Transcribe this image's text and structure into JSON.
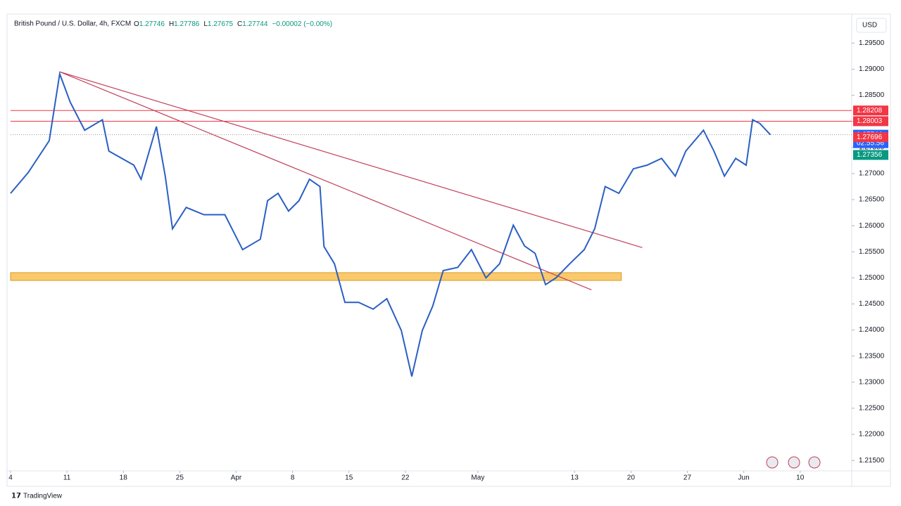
{
  "header": {
    "symbol": "British Pound / U.S. Dollar, 4h, FXCM",
    "ohlc": [
      {
        "label": "O",
        "value": 1.27746
      },
      {
        "label": "H",
        "value": 1.27786
      },
      {
        "label": "L",
        "value": 1.27675
      },
      {
        "label": "C",
        "value": 1.27744
      }
    ],
    "change": "−0.00002 (−0.00%)",
    "currency": "USD"
  },
  "footer": "TradingView",
  "chart_data": {
    "type": "line",
    "xlim": [
      0,
      104.4
    ],
    "xticks": [
      {
        "value": 0,
        "label": "4"
      },
      {
        "value": 7,
        "label": "11"
      },
      {
        "value": 14,
        "label": "18"
      },
      {
        "value": 21,
        "label": "25"
      },
      {
        "value": 28,
        "label": "Apr"
      },
      {
        "value": 35,
        "label": "8"
      },
      {
        "value": 42,
        "label": "15"
      },
      {
        "value": 49,
        "label": "22"
      },
      {
        "value": 58,
        "label": "May"
      },
      {
        "value": 70,
        "label": "13"
      },
      {
        "value": 77,
        "label": "20"
      },
      {
        "value": 84,
        "label": "27"
      },
      {
        "value": 91,
        "label": "Jun"
      },
      {
        "value": 98,
        "label": "10"
      }
    ],
    "ylim": [
      1.213,
      1.2972
    ],
    "yticks": [
      {
        "value": 1.295,
        "label": "1.29500"
      },
      {
        "value": 1.29,
        "label": "1.29000"
      },
      {
        "value": 1.285,
        "label": "1.28500"
      },
      {
        "value": 1.28,
        "label": "1.28000"
      },
      {
        "value": 1.275,
        "label": "1.27500"
      },
      {
        "value": 1.27,
        "label": "1.27000"
      },
      {
        "value": 1.265,
        "label": "1.26500"
      },
      {
        "value": 1.26,
        "label": "1.26000"
      },
      {
        "value": 1.255,
        "label": "1.25500"
      },
      {
        "value": 1.25,
        "label": "1.25000"
      },
      {
        "value": 1.245,
        "label": "1.24500"
      },
      {
        "value": 1.24,
        "label": "1.24000"
      },
      {
        "value": 1.235,
        "label": "1.23500"
      },
      {
        "value": 1.23,
        "label": "1.23000"
      },
      {
        "value": 1.225,
        "label": "1.22500"
      },
      {
        "value": 1.22,
        "label": "1.22000"
      },
      {
        "value": 1.215,
        "label": "1.21500"
      }
    ],
    "series": [
      {
        "name": "GBPUSD",
        "color": "#2a5fc4",
        "x": [
          0,
          2.2,
          4.8,
          6.1,
          7.4,
          9.2,
          11.4,
          12.2,
          15.3,
          16.2,
          18.1,
          19.2,
          20.1,
          21.8,
          24.0,
          26.6,
          28.8,
          31.0,
          31.9,
          33.2,
          34.5,
          35.8,
          37.1,
          38.4,
          38.9,
          40.2,
          41.5,
          43.2,
          45.0,
          46.7,
          48.5,
          49.8,
          51.1,
          52.4,
          53.7,
          55.5,
          57.2,
          59.0,
          60.7,
          62.4,
          63.8,
          65.1,
          66.4,
          67.7,
          69.4,
          71.2,
          72.5,
          73.8,
          75.5,
          77.3,
          79.0,
          80.8,
          82.5,
          83.8,
          86.0,
          87.3,
          88.6,
          90.0,
          91.3,
          92.1,
          93.0,
          94.3
        ],
        "values": [
          1.2662,
          1.2702,
          1.2763,
          1.2891,
          1.2837,
          1.2783,
          1.2803,
          1.2743,
          1.2716,
          1.2689,
          1.279,
          1.2695,
          1.2594,
          1.2635,
          1.2621,
          1.2621,
          1.2554,
          1.2574,
          1.2648,
          1.2662,
          1.2628,
          1.2648,
          1.2689,
          1.2675,
          1.256,
          1.2527,
          1.2453,
          1.2453,
          1.244,
          1.246,
          1.2399,
          1.2311,
          1.2399,
          1.2446,
          1.2514,
          1.252,
          1.2554,
          1.25,
          1.2527,
          1.2601,
          1.2561,
          1.2547,
          1.2487,
          1.25,
          1.2527,
          1.2554,
          1.2594,
          1.2675,
          1.2662,
          1.2709,
          1.2716,
          1.2729,
          1.2695,
          1.2743,
          1.2783,
          1.2743,
          1.2695,
          1.2729,
          1.2716,
          1.2803,
          1.2796,
          1.27744
        ]
      }
    ],
    "levels": [
      {
        "value": 1.28208,
        "color": "#f23645"
      },
      {
        "value": 1.28003,
        "color": "#f23645"
      }
    ],
    "price_labels": [
      {
        "value": 1.27744,
        "color": "#2962ff",
        "countdown": "02:55:56"
      },
      {
        "value": 1.27696,
        "color": "#f23645"
      },
      {
        "value": 1.27356,
        "color": "#089981"
      }
    ],
    "zone": {
      "x": [
        0,
        75.8
      ],
      "y": [
        1.2495,
        1.251
      ],
      "color": "#f9c96b"
    },
    "trendlines": [
      {
        "x": [
          6.1,
          72.1
        ],
        "y": [
          1.2895,
          1.2477
        ],
        "color": "#c2405a"
      },
      {
        "x": [
          6.1,
          78.4
        ],
        "y": [
          1.2895,
          1.2558
        ],
        "color": "#c2405a"
      }
    ]
  }
}
